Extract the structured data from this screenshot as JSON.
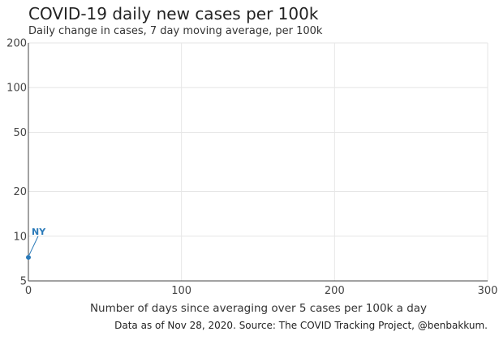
{
  "header": {
    "title": "COVID-19 daily new cases per 100k",
    "subtitle": "Daily change in cases, 7 day moving average, per 100k"
  },
  "footer": {
    "source": "Data as of Nov 28, 2020. Source: The COVID Tracking Project, @benbakkum."
  },
  "colors": {
    "series": "#2a7ab9",
    "grid": "#e6e6e6",
    "axis": "#444444"
  },
  "chart_data": {
    "type": "line",
    "title": "COVID-19 daily new cases per 100k",
    "subtitle": "Daily change in cases, 7 day moving average, per 100k",
    "xlabel": "Number of days since averaging over 5 cases per 100k a day",
    "ylabel": "",
    "xlim": [
      0,
      300
    ],
    "ylim": [
      5,
      200
    ],
    "y_scale": "log",
    "x_ticks": [
      0,
      100,
      200,
      300
    ],
    "y_ticks": [
      5,
      10,
      20,
      50,
      100,
      200
    ],
    "grid": true,
    "series": [
      {
        "name": "NY",
        "x": [
          0
        ],
        "y": [
          7.2
        ],
        "color": "#2a7ab9"
      }
    ],
    "annotations": [
      {
        "text": "NY",
        "series": "NY"
      }
    ]
  }
}
